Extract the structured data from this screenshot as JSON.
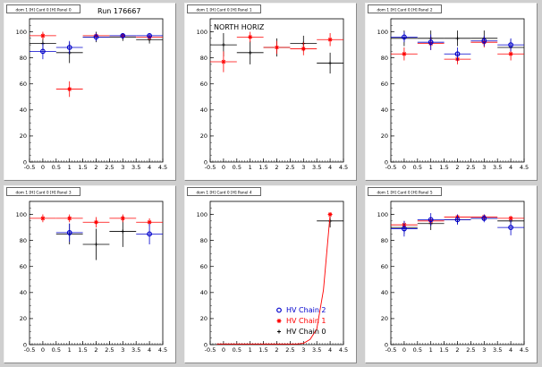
{
  "window": {
    "background": "#cfcfcf"
  },
  "colors": {
    "chain0": "#000000",
    "chain1": "#ff0000",
    "chain2": "#0000cc"
  },
  "legend": {
    "entries": [
      {
        "label": "HV Chain 2",
        "color": "#0000cc",
        "symbol": "open-circle"
      },
      {
        "label": "HV Chain 1",
        "color": "#ff0000",
        "symbol": "star"
      },
      {
        "label": "HV Chain 0",
        "color": "#000000",
        "symbol": "plus"
      }
    ]
  },
  "chart_data": [
    {
      "type": "scatter",
      "title": "dom 1 [H] Card 0 [H] Panel 0",
      "annotation": "Run 176667",
      "xlim": [
        -0.5,
        4.5
      ],
      "ylim": [
        0,
        110
      ],
      "xticks": [
        -0.5,
        0,
        0.5,
        1,
        1.5,
        2,
        2.5,
        3,
        3.5,
        4,
        4.5
      ],
      "yticks": [
        0,
        20,
        40,
        60,
        80,
        100
      ],
      "series": [
        {
          "name": "HV Chain 0",
          "x": [
            0,
            1,
            2,
            3,
            4
          ],
          "y": [
            91,
            84,
            96,
            96,
            94
          ],
          "yerr": [
            8,
            8,
            4,
            3,
            3
          ]
        },
        {
          "name": "HV Chain 1",
          "x": [
            0,
            1,
            2,
            3,
            4
          ],
          "y": [
            97,
            56,
            97,
            97,
            96
          ],
          "yerr": [
            3,
            6,
            2,
            2,
            2
          ]
        },
        {
          "name": "HV Chain 2",
          "x": [
            0,
            1,
            2,
            3,
            4
          ],
          "y": [
            85,
            88,
            96,
            97,
            97
          ],
          "yerr": [
            6,
            5,
            3,
            2,
            2
          ]
        }
      ]
    },
    {
      "type": "scatter",
      "title": "dom 1 [H] Card 0 [H] Panel 1",
      "annotation": "NORTH HORIZ",
      "xlim": [
        -0.5,
        4.5
      ],
      "ylim": [
        0,
        110
      ],
      "xticks": [
        -0.5,
        0,
        0.5,
        1,
        1.5,
        2,
        2.5,
        3,
        3.5,
        4,
        4.5
      ],
      "yticks": [
        0,
        20,
        40,
        60,
        80,
        100
      ],
      "series": [
        {
          "name": "HV Chain 0",
          "x": [
            0,
            1,
            2,
            3,
            4
          ],
          "y": [
            90,
            84,
            88,
            91,
            76
          ],
          "yerr": [
            9,
            9,
            7,
            6,
            8
          ]
        },
        {
          "name": "HV Chain 1",
          "x": [
            0,
            1,
            2,
            3,
            4
          ],
          "y": [
            77,
            96,
            88,
            87,
            94
          ],
          "yerr": [
            8,
            4,
            5,
            5,
            5
          ]
        },
        {
          "name": "HV Chain 2",
          "x": [],
          "y": [],
          "yerr": []
        }
      ]
    },
    {
      "type": "scatter",
      "title": "dom 1 [H] Card 0 [H] Panel 2",
      "annotation": "",
      "xlim": [
        -0.5,
        4.5
      ],
      "ylim": [
        0,
        110
      ],
      "xticks": [
        -0.5,
        0,
        0.5,
        1,
        1.5,
        2,
        2.5,
        3,
        3.5,
        4,
        4.5
      ],
      "yticks": [
        0,
        20,
        40,
        60,
        80,
        100
      ],
      "series": [
        {
          "name": "HV Chain 0",
          "x": [
            0,
            1,
            2,
            3,
            4
          ],
          "y": [
            95,
            95,
            95,
            95,
            88
          ],
          "yerr": [
            6,
            6,
            6,
            6,
            6
          ]
        },
        {
          "name": "HV Chain 1",
          "x": [
            0,
            1,
            2,
            3,
            4
          ],
          "y": [
            83,
            91,
            79,
            92,
            83
          ],
          "yerr": [
            5,
            5,
            4,
            4,
            5
          ]
        },
        {
          "name": "HV Chain 2",
          "x": [
            0,
            1,
            2,
            3,
            4
          ],
          "y": [
            96,
            92,
            83,
            93,
            90
          ],
          "yerr": [
            4,
            6,
            5,
            4,
            5
          ]
        }
      ]
    },
    {
      "type": "scatter",
      "title": "dom 1 [H] Card 0 [H] Panel 3",
      "annotation": "",
      "xlim": [
        -0.5,
        4.5
      ],
      "ylim": [
        0,
        110
      ],
      "xticks": [
        -0.5,
        0,
        0.5,
        1,
        1.5,
        2,
        2.5,
        3,
        3.5,
        4,
        4.5
      ],
      "yticks": [
        0,
        20,
        40,
        60,
        80,
        100
      ],
      "series": [
        {
          "name": "HV Chain 0",
          "x": [
            1,
            2,
            3
          ],
          "y": [
            85,
            77,
            87
          ],
          "yerr": [
            8,
            12,
            12
          ]
        },
        {
          "name": "HV Chain 1",
          "x": [
            0,
            1,
            2,
            3,
            4
          ],
          "y": [
            97,
            97,
            94,
            97,
            94
          ],
          "yerr": [
            3,
            3,
            4,
            3,
            3
          ]
        },
        {
          "name": "HV Chain 2",
          "x": [
            1,
            4
          ],
          "y": [
            86,
            85
          ],
          "yerr": [
            7,
            8
          ]
        }
      ]
    },
    {
      "type": "scatter",
      "title": "dom 1 [H] Card 0 [H] Panel 4",
      "annotation": "",
      "xlim": [
        -0.5,
        4.5
      ],
      "ylim": [
        0,
        110
      ],
      "xticks": [
        -0.5,
        0,
        0.5,
        1,
        1.5,
        2,
        2.5,
        3,
        3.5,
        4,
        4.5
      ],
      "yticks": [
        0,
        20,
        40,
        60,
        80,
        100
      ],
      "show_legend": true,
      "series": [
        {
          "name": "HV Chain 0",
          "x": [
            4
          ],
          "y": [
            95
          ],
          "yerr": [
            5
          ]
        },
        {
          "name": "HV Chain 1",
          "x": [
            -0.25,
            0,
            0.25,
            0.5,
            0.75,
            1,
            1.25,
            1.5,
            1.75,
            2,
            2.25,
            2.5,
            2.75,
            3,
            3.25,
            3.5,
            3.75,
            4
          ],
          "y": [
            0.5,
            0.5,
            0.5,
            0.5,
            0.5,
            0.5,
            0.5,
            0.5,
            0.5,
            0.5,
            0.5,
            0.5,
            0.5,
            1,
            4,
            12,
            42,
            100
          ],
          "yerr": [
            0,
            0,
            0,
            0,
            0,
            0,
            0,
            0,
            0,
            0,
            0,
            0,
            0,
            0,
            0,
            0,
            0,
            0
          ],
          "connect": true
        },
        {
          "name": "HV Chain 2",
          "x": [],
          "y": [],
          "yerr": []
        }
      ]
    },
    {
      "type": "scatter",
      "title": "dom 1 [H] Card 0 [H] Panel 5",
      "annotation": "",
      "xlim": [
        -0.5,
        4.5
      ],
      "ylim": [
        0,
        110
      ],
      "xticks": [
        -0.5,
        0,
        0.5,
        1,
        1.5,
        2,
        2.5,
        3,
        3.5,
        4,
        4.5
      ],
      "yticks": [
        0,
        20,
        40,
        60,
        80,
        100
      ],
      "series": [
        {
          "name": "HV Chain 0",
          "x": [
            0,
            1,
            2,
            3,
            4
          ],
          "y": [
            90,
            93,
            96,
            97,
            95
          ],
          "yerr": [
            5,
            5,
            3,
            2,
            3
          ]
        },
        {
          "name": "HV Chain 1",
          "x": [
            0,
            1,
            2,
            3,
            4
          ],
          "y": [
            92,
            95,
            98,
            98,
            97
          ],
          "yerr": [
            3,
            3,
            2,
            2,
            2
          ]
        },
        {
          "name": "HV Chain 2",
          "x": [
            0,
            1,
            2,
            3,
            4
          ],
          "y": [
            89,
            96,
            96,
            97,
            90
          ],
          "yerr": [
            6,
            5,
            4,
            3,
            6
          ]
        }
      ]
    }
  ]
}
